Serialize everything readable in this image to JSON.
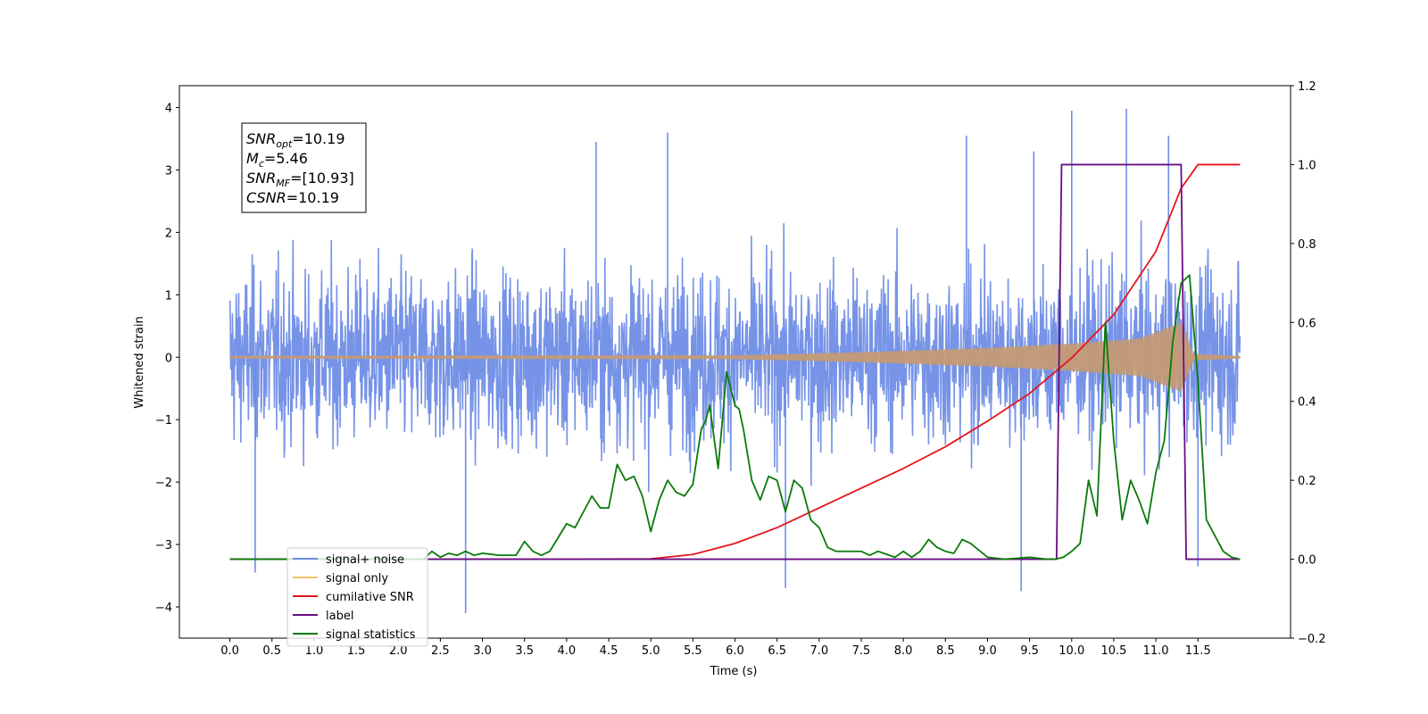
{
  "chart_data": {
    "type": "line",
    "xlabel": "Time (s)",
    "ylabel_left": "Whitened strain",
    "ylabel_right": "",
    "xlim": [
      -0.6,
      12.6
    ],
    "ylim_left": [
      -4.5,
      4.35
    ],
    "ylim_right": [
      -0.2,
      1.2
    ],
    "x_ticks": [
      0.0,
      0.5,
      1.0,
      1.5,
      2.0,
      2.5,
      3.0,
      3.5,
      4.0,
      4.5,
      5.0,
      5.5,
      6.0,
      6.5,
      7.0,
      7.5,
      8.0,
      8.5,
      9.0,
      9.5,
      10.0,
      10.5,
      11.0,
      11.5
    ],
    "x_tick_labels": [
      "0.0",
      "0.5",
      "1.0",
      "1.5",
      "2.0",
      "2.5",
      "3.0",
      "3.5",
      "4.0",
      "4.5",
      "5.0",
      "5.5",
      "6.0",
      "6.5",
      "7.0",
      "7.5",
      "8.0",
      "8.5",
      "9.0",
      "9.5",
      "10.0",
      "10.5",
      "11.0",
      "11.5"
    ],
    "y_ticks_left": [
      -4,
      -3,
      -2,
      -1,
      0,
      1,
      2,
      3,
      4
    ],
    "y_tick_labels_left": [
      "−4",
      "−3",
      "−2",
      "−1",
      "0",
      "1",
      "2",
      "3",
      "4"
    ],
    "y_ticks_right": [
      -0.2,
      0.0,
      0.2,
      0.4,
      0.6,
      0.8,
      1.0,
      1.2
    ],
    "y_tick_labels_right": [
      "−0.2",
      "0.0",
      "0.2",
      "0.4",
      "0.6",
      "0.8",
      "1.0",
      "1.2"
    ],
    "grid": false,
    "legend_position": "lower-left",
    "annotation": {
      "lines": [
        {
          "main": "SNR",
          "sub": "opt",
          "rest": "=10.19"
        },
        {
          "main": "M",
          "sub": "c",
          "rest": "=5.46"
        },
        {
          "main": "SNR",
          "sub": "MF",
          "rest": "=[10.93]"
        },
        {
          "main": "CSNR",
          "sub": "",
          "rest": "=10.19"
        }
      ]
    },
    "series": [
      {
        "name": "signal+ noise",
        "color": "#6f8de6",
        "axis": "left",
        "kind": "noise",
        "x_range": [
          0.0,
          12.0
        ],
        "typical_envelope": [
          -1.8,
          1.7
        ],
        "peaks": [
          {
            "x": 10.0,
            "y": 3.95
          },
          {
            "x": 10.65,
            "y": 3.98
          },
          {
            "x": 11.15,
            "y": 3.55
          },
          {
            "x": 5.2,
            "y": 3.6
          },
          {
            "x": 8.75,
            "y": 3.55
          },
          {
            "x": 4.35,
            "y": 3.45
          },
          {
            "x": 9.55,
            "y": 3.3
          },
          {
            "x": 2.8,
            "y": -4.1
          },
          {
            "x": 9.4,
            "y": -3.75
          },
          {
            "x": 6.6,
            "y": -3.7
          },
          {
            "x": 0.3,
            "y": -3.45
          },
          {
            "x": 11.5,
            "y": -3.35
          }
        ]
      },
      {
        "name": "signal only",
        "color": "#f5c26b",
        "axis": "left",
        "kind": "chirp",
        "amplitude_points": [
          {
            "x": 0.0,
            "y": 0.02
          },
          {
            "x": 6.0,
            "y": 0.03
          },
          {
            "x": 7.5,
            "y": 0.08
          },
          {
            "x": 9.0,
            "y": 0.15
          },
          {
            "x": 10.0,
            "y": 0.22
          },
          {
            "x": 10.8,
            "y": 0.3
          },
          {
            "x": 11.3,
            "y": 0.55
          },
          {
            "x": 11.45,
            "y": 0.05
          },
          {
            "x": 12.0,
            "y": 0.02
          }
        ]
      },
      {
        "name": "cumilative SNR",
        "color": "#e3161c",
        "axis": "right",
        "x": [
          0.0,
          4.0,
          5.0,
          5.5,
          6.0,
          6.5,
          7.0,
          7.5,
          8.0,
          8.5,
          9.0,
          9.5,
          10.0,
          10.5,
          11.0,
          11.3,
          11.5,
          12.0
        ],
        "y": [
          0.0,
          0.0,
          0.001,
          0.012,
          0.04,
          0.08,
          0.13,
          0.18,
          0.23,
          0.285,
          0.35,
          0.42,
          0.51,
          0.62,
          0.78,
          0.94,
          1.0,
          1.0
        ]
      },
      {
        "name": "label",
        "color": "#6a0d83",
        "axis": "right",
        "x": [
          0.0,
          9.82,
          9.88,
          11.3,
          11.36,
          12.0
        ],
        "y": [
          0.0,
          0.0,
          1.0,
          1.0,
          0.0,
          0.0
        ]
      },
      {
        "name": "signal statistics",
        "color": "#0a7a0a",
        "axis": "right",
        "x": [
          0.0,
          2.3,
          2.4,
          2.5,
          2.6,
          2.7,
          2.8,
          2.9,
          3.0,
          3.2,
          3.4,
          3.5,
          3.6,
          3.7,
          3.8,
          4.0,
          4.1,
          4.2,
          4.3,
          4.4,
          4.5,
          4.6,
          4.7,
          4.8,
          4.9,
          5.0,
          5.1,
          5.2,
          5.3,
          5.4,
          5.5,
          5.6,
          5.65,
          5.7,
          5.8,
          5.9,
          6.0,
          6.05,
          6.1,
          6.2,
          6.3,
          6.4,
          6.5,
          6.6,
          6.7,
          6.8,
          6.9,
          7.0,
          7.1,
          7.2,
          7.3,
          7.5,
          7.6,
          7.7,
          7.9,
          8.0,
          8.1,
          8.2,
          8.3,
          8.4,
          8.5,
          8.6,
          8.7,
          8.8,
          9.0,
          9.2,
          9.5,
          9.7,
          9.8,
          9.9,
          10.0,
          10.1,
          10.2,
          10.3,
          10.4,
          10.5,
          10.6,
          10.7,
          10.8,
          10.9,
          11.0,
          11.1,
          11.2,
          11.3,
          11.4,
          11.5,
          11.6,
          11.8,
          11.9,
          12.0
        ],
        "y": [
          0.0,
          0.0,
          0.02,
          0.005,
          0.015,
          0.01,
          0.02,
          0.01,
          0.015,
          0.01,
          0.01,
          0.045,
          0.02,
          0.01,
          0.02,
          0.09,
          0.08,
          0.12,
          0.16,
          0.13,
          0.13,
          0.24,
          0.2,
          0.21,
          0.16,
          0.07,
          0.15,
          0.2,
          0.17,
          0.16,
          0.19,
          0.33,
          0.35,
          0.39,
          0.23,
          0.475,
          0.39,
          0.38,
          0.33,
          0.2,
          0.15,
          0.21,
          0.2,
          0.12,
          0.2,
          0.18,
          0.1,
          0.08,
          0.03,
          0.02,
          0.02,
          0.02,
          0.01,
          0.02,
          0.005,
          0.02,
          0.005,
          0.02,
          0.05,
          0.03,
          0.02,
          0.015,
          0.05,
          0.04,
          0.005,
          0.0,
          0.005,
          0.0,
          0.0,
          0.005,
          0.02,
          0.04,
          0.2,
          0.11,
          0.6,
          0.3,
          0.1,
          0.2,
          0.15,
          0.09,
          0.22,
          0.3,
          0.55,
          0.7,
          0.72,
          0.45,
          0.1,
          0.02,
          0.005,
          0.0
        ]
      }
    ]
  }
}
